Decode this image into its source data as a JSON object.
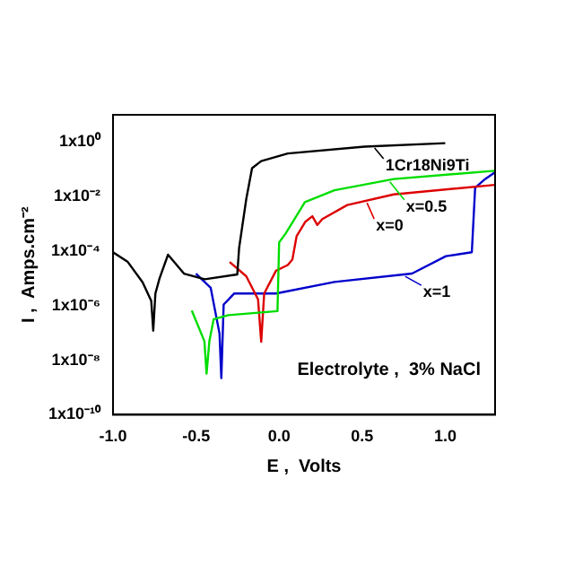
{
  "chart_data": {
    "type": "line",
    "xlabel": "E ,  Volts",
    "ylabel": "I ,  Amps.cm⁻²",
    "log": "y",
    "xlim": [
      -1.0,
      1.3
    ],
    "xticks": [
      {
        "value": -1,
        "label": "-1.0"
      },
      {
        "value": -0.5,
        "label": "-0.5"
      },
      {
        "value": 0,
        "label": "0.0"
      },
      {
        "value": 0.5,
        "label": "0.5"
      },
      {
        "value": 1,
        "label": "1.0"
      }
    ],
    "ylim": [
      1e-10,
      10
    ],
    "yticks": [
      {
        "value": 1e-10,
        "label": "1x10⁻¹⁰"
      },
      {
        "value": 1e-08,
        "label": "1x10⁻⁸"
      },
      {
        "value": 1e-06,
        "label": "1x10⁻⁶"
      },
      {
        "value": 0.0001,
        "label": "1x10⁻⁴"
      },
      {
        "value": 0.01,
        "label": "1x10⁻²"
      },
      {
        "value": 1,
        "label": "1x10⁰"
      }
    ],
    "grid": false,
    "legend": "right",
    "marker": "none",
    "line_style": "solid",
    "annotations": [
      "Electrolyte ,  3% NaCl"
    ],
    "series": [
      {
        "name": "1Cr18Ni9Ti",
        "color": "#000000",
        "x": [
          -1.0,
          -0.911,
          -0.822,
          -0.77,
          -0.758,
          -0.745,
          -0.72,
          -0.669,
          -0.573,
          -0.448,
          -0.252,
          -0.241,
          -0.198,
          -0.163,
          -0.108,
          0.052,
          0.514,
          1.0
        ],
        "values": [
          9.1e-05,
          4e-05,
          7.2e-06,
          1.5e-06,
          1.2e-07,
          2.8e-06,
          1e-05,
          7.4e-05,
          1.5e-05,
          9.3e-06,
          1.4e-05,
          0.00013,
          0.0081,
          0.11,
          0.2,
          0.38,
          0.68,
          0.91
        ]
      },
      {
        "name": "x=0.5",
        "color": "#00dd00",
        "x": [
          -0.526,
          -0.45,
          -0.437,
          -0.42,
          -0.394,
          -0.305,
          -0.01,
          0.0,
          0.04,
          0.155,
          0.333,
          0.69,
          1.3
        ],
        "values": [
          6.6e-07,
          5e-08,
          3.2e-09,
          5e-08,
          3.2e-07,
          4.5e-07,
          6.3e-07,
          0.00021,
          0.00045,
          0.0063,
          0.017,
          0.044,
          0.089
        ]
      },
      {
        "name": "x=0",
        "color": "#dd0000",
        "x": [
          -0.298,
          -0.198,
          -0.127,
          -0.108,
          -0.09,
          -0.019,
          0.052,
          0.08,
          0.105,
          0.158,
          0.2,
          0.23,
          0.26,
          0.41,
          0.69,
          1.3
        ],
        "values": [
          4e-05,
          1.2e-05,
          1.7e-06,
          4.7e-08,
          2.8e-06,
          1.9e-05,
          3.1e-05,
          5e-05,
          0.00035,
          0.0012,
          0.0019,
          0.00091,
          0.0015,
          0.0049,
          0.012,
          0.027
        ]
      },
      {
        "name": "x=1",
        "color": "#0000cc",
        "x": [
          -0.501,
          -0.412,
          -0.359,
          -0.348,
          -0.334,
          -0.27,
          -0.019,
          0.333,
          0.8,
          1.004,
          1.16,
          1.18,
          1.24,
          1.3
        ],
        "values": [
          1.5e-05,
          4.5e-06,
          9.5e-08,
          2.2e-09,
          1.1e-06,
          2.8e-06,
          2.8e-06,
          7.4e-06,
          1.5e-05,
          6.5e-05,
          9.1e-05,
          0.021,
          0.044,
          0.078
        ]
      }
    ]
  }
}
